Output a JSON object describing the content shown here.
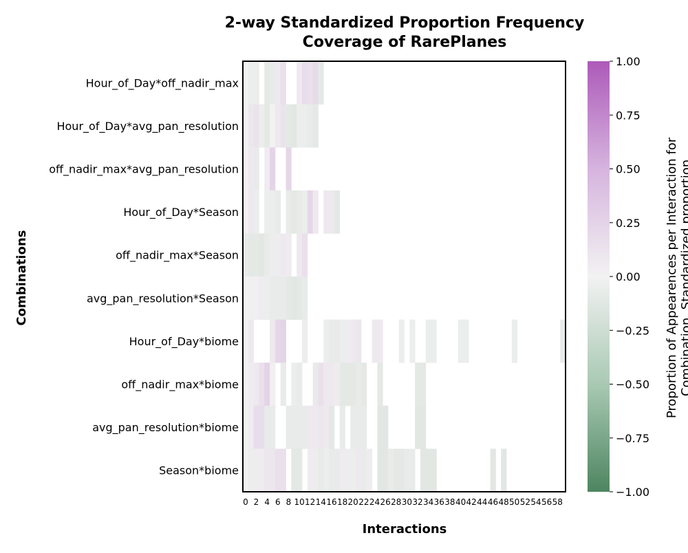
{
  "chart_data": {
    "type": "heatmap",
    "title_lines": [
      "2-way Standardized Proportion Frequency",
      "Coverage of RarePlanes"
    ],
    "xlabel": "Interactions",
    "ylabel": "Combinations",
    "colorbar_label_lines": [
      "Proportion of Appearences per Interaction for",
      "Combination, Standardized proportion"
    ],
    "colorbar_ticks": [
      "1.00",
      "0.75",
      "0.50",
      "0.25",
      "0.00",
      "−0.25",
      "−0.50",
      "−0.75",
      "−1.00"
    ],
    "vmin": -1.0,
    "vmax": 1.0,
    "colormap": {
      "low": "#4d8560",
      "mid": "#f2f2f2",
      "high": "#ad5ab9"
    },
    "x_tick_labels": [
      "0",
      "2",
      "4",
      "6",
      "8",
      "10",
      "12",
      "14",
      "16",
      "18",
      "20",
      "22",
      "24",
      "26",
      "28",
      "30",
      "32",
      "34",
      "36",
      "38",
      "40",
      "42",
      "44",
      "46",
      "48",
      "50",
      "52",
      "54",
      "56",
      "58"
    ],
    "n_columns": 60,
    "rows": [
      "Hour_of_Day*off_nadir_max",
      "Hour_of_Day*avg_pan_resolution",
      "off_nadir_max*avg_pan_resolution",
      "Hour_of_Day*Season",
      "off_nadir_max*Season",
      "avg_pan_resolution*Season",
      "Hour_of_Day*biome",
      "off_nadir_max*biome",
      "avg_pan_resolution*biome",
      "Season*biome"
    ],
    "values": [
      [
        0,
        -0.04,
        -0.04,
        null,
        -0.08,
        -0.06,
        0.06,
        0.12,
        null,
        null,
        0.06,
        0.14,
        0.12,
        0.16,
        -0.08,
        null,
        null,
        null,
        null,
        null,
        null,
        null,
        null,
        null,
        null,
        null,
        null,
        null,
        null,
        null,
        null,
        null,
        null,
        null,
        null,
        null,
        null,
        null,
        null,
        null,
        null,
        null,
        null,
        null,
        null,
        null,
        null,
        null,
        null,
        null,
        null,
        null,
        null,
        null,
        null,
        null,
        null,
        null,
        null,
        null
      ],
      [
        0,
        0.08,
        0.1,
        -0.04,
        -0.08,
        0,
        0.06,
        0.1,
        -0.08,
        -0.1,
        -0.04,
        -0.04,
        -0.06,
        -0.08,
        null,
        null,
        null,
        null,
        null,
        null,
        null,
        null,
        null,
        null,
        null,
        null,
        null,
        null,
        null,
        null,
        null,
        null,
        null,
        null,
        null,
        null,
        null,
        null,
        null,
        null,
        null,
        null,
        null,
        null,
        null,
        null,
        null,
        null,
        null,
        null,
        null,
        null,
        null,
        null,
        null,
        null,
        null,
        null,
        null,
        null
      ],
      [
        0,
        0.06,
        -0.06,
        null,
        0.04,
        0.2,
        null,
        null,
        0.18,
        null,
        null,
        null,
        null,
        null,
        null,
        null,
        null,
        null,
        null,
        null,
        null,
        null,
        null,
        null,
        null,
        null,
        null,
        null,
        null,
        null,
        null,
        null,
        null,
        null,
        null,
        null,
        null,
        null,
        null,
        null,
        null,
        null,
        null,
        null,
        null,
        null,
        null,
        null,
        null,
        null,
        null,
        null,
        null,
        null,
        null,
        null,
        null,
        null,
        null,
        null
      ],
      [
        0,
        0.06,
        -0.04,
        null,
        -0.04,
        -0.04,
        -0.06,
        null,
        -0.06,
        -0.08,
        -0.06,
        -0.04,
        0.18,
        0.06,
        null,
        0.06,
        0.06,
        -0.08,
        null,
        null,
        null,
        null,
        null,
        null,
        null,
        null,
        null,
        null,
        null,
        null,
        null,
        null,
        null,
        null,
        null,
        null,
        null,
        null,
        null,
        null,
        null,
        null,
        null,
        null,
        null,
        null,
        null,
        null,
        null,
        null,
        null,
        null,
        null,
        null,
        null,
        null,
        null,
        null,
        null,
        null
      ],
      [
        -0.06,
        -0.08,
        -0.08,
        -0.1,
        -0.06,
        -0.04,
        0.04,
        0.06,
        0.04,
        null,
        0.06,
        0.12,
        null,
        null,
        null,
        null,
        null,
        null,
        null,
        null,
        null,
        null,
        null,
        null,
        null,
        null,
        null,
        null,
        null,
        null,
        null,
        null,
        null,
        null,
        null,
        null,
        null,
        null,
        null,
        null,
        null,
        null,
        null,
        null,
        null,
        null,
        null,
        null,
        null,
        null,
        null,
        null,
        null,
        null,
        null,
        null,
        null,
        null,
        null,
        null
      ],
      [
        0,
        -0.02,
        0.02,
        0.04,
        -0.04,
        -0.06,
        -0.06,
        -0.06,
        -0.08,
        -0.1,
        -0.08,
        -0.06,
        null,
        null,
        null,
        null,
        null,
        null,
        null,
        null,
        null,
        null,
        null,
        null,
        null,
        null,
        null,
        null,
        null,
        null,
        null,
        null,
        null,
        null,
        null,
        null,
        null,
        null,
        null,
        null,
        null,
        null,
        null,
        null,
        null,
        null,
        null,
        null,
        null,
        null,
        null,
        null,
        null,
        null,
        null,
        null,
        null,
        null,
        null,
        null
      ],
      [
        0,
        0.06,
        null,
        null,
        null,
        0.06,
        0.18,
        0.2,
        null,
        null,
        null,
        -0.04,
        null,
        null,
        null,
        -0.04,
        -0.06,
        -0.06,
        -0.04,
        0.04,
        0.06,
        0.08,
        null,
        null,
        0.06,
        0.06,
        null,
        null,
        null,
        -0.04,
        null,
        -0.04,
        null,
        null,
        -0.04,
        -0.04,
        null,
        null,
        null,
        null,
        -0.04,
        -0.04,
        null,
        null,
        null,
        null,
        null,
        null,
        null,
        null,
        -0.04,
        null,
        null,
        null,
        null,
        null,
        null,
        null,
        null,
        -0.06
      ],
      [
        0,
        0.04,
        0.06,
        0.12,
        0.2,
        0.02,
        null,
        -0.06,
        null,
        -0.04,
        -0.06,
        null,
        null,
        -0.06,
        0.12,
        0.06,
        0.06,
        0.04,
        -0.08,
        -0.08,
        -0.08,
        -0.06,
        -0.08,
        null,
        null,
        -0.08,
        null,
        null,
        null,
        null,
        null,
        null,
        -0.08,
        -0.08,
        null,
        null,
        null,
        null,
        null,
        null,
        null,
        null,
        null,
        null,
        null,
        null,
        null,
        null,
        null,
        null,
        null,
        null,
        null,
        null,
        null,
        null,
        null,
        null,
        null,
        null
      ],
      [
        0,
        0.04,
        0.14,
        0.14,
        -0.06,
        -0.06,
        null,
        null,
        -0.06,
        -0.06,
        -0.06,
        -0.06,
        0.06,
        0.06,
        0.08,
        0.06,
        -0.08,
        null,
        -0.06,
        null,
        -0.06,
        -0.06,
        -0.06,
        null,
        null,
        -0.1,
        -0.1,
        null,
        null,
        null,
        null,
        null,
        -0.1,
        -0.1,
        null,
        null,
        null,
        null,
        null,
        null,
        null,
        null,
        null,
        null,
        null,
        null,
        null,
        null,
        null,
        null,
        null,
        null,
        null,
        null,
        null,
        null,
        null,
        null,
        null,
        null
      ],
      [
        0,
        -0.04,
        0.04,
        0.04,
        0.08,
        0.08,
        0.12,
        0.12,
        null,
        -0.08,
        -0.08,
        null,
        0.04,
        0.04,
        -0.06,
        -0.04,
        -0.06,
        -0.06,
        0.04,
        0.04,
        -0.04,
        0.06,
        -0.06,
        0.04,
        null,
        -0.1,
        -0.1,
        -0.06,
        -0.08,
        -0.08,
        -0.06,
        -0.06,
        null,
        -0.1,
        -0.1,
        -0.1,
        null,
        null,
        null,
        null,
        null,
        null,
        null,
        null,
        null,
        null,
        -0.1,
        null,
        -0.1,
        null,
        null,
        null,
        null,
        null,
        null,
        null,
        null,
        null,
        null,
        null
      ]
    ]
  }
}
